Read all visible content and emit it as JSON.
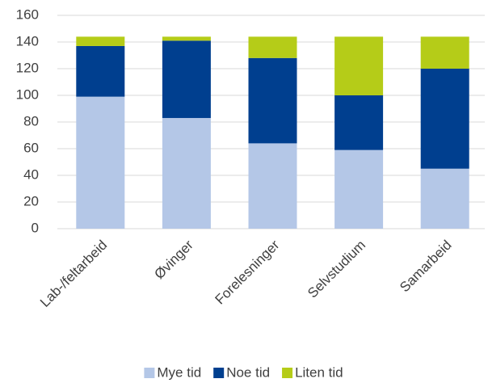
{
  "chart_data": {
    "type": "stacked_bar",
    "categories": [
      "Lab-/feltarbeid",
      "Øvinger",
      "Forelesninger",
      "Selvstudium",
      "Samarbeid"
    ],
    "series": [
      {
        "name": "Mye tid",
        "color": "#b4c7e7",
        "values": [
          99,
          83,
          64,
          59,
          45
        ]
      },
      {
        "name": "Noe tid",
        "color": "#003f8f",
        "values": [
          38,
          58,
          64,
          41,
          75
        ]
      },
      {
        "name": "Liten tid",
        "color": "#b5cc18",
        "values": [
          7,
          3,
          16,
          44,
          24
        ]
      }
    ],
    "ylim": [
      0,
      160
    ],
    "yticks": [
      0,
      20,
      40,
      60,
      80,
      100,
      120,
      140,
      160
    ],
    "grid": true,
    "legend": "bottom"
  }
}
